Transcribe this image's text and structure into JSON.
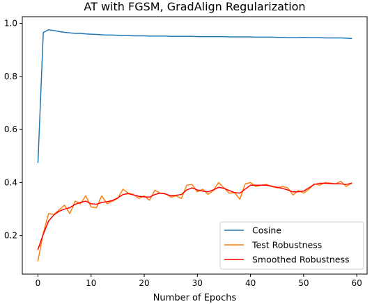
{
  "chart_data": {
    "type": "line",
    "title": "AT with FGSM, GradAlign Regularization",
    "xlabel": "Number of Epochs",
    "ylabel": "",
    "xlim": [
      -2.95,
      61.95
    ],
    "ylim": [
      0.055,
      1.025
    ],
    "xticks": [
      0,
      10,
      20,
      30,
      40,
      50,
      60
    ],
    "yticks": [
      0.2,
      0.4,
      0.6,
      0.8,
      1.0
    ],
    "ytick_labels": [
      "0.2",
      "0.4",
      "0.6",
      "0.8",
      "1.0"
    ],
    "grid": false,
    "legend_position": "lower-right",
    "x": [
      0,
      1,
      2,
      3,
      4,
      5,
      6,
      7,
      8,
      9,
      10,
      11,
      12,
      13,
      14,
      15,
      16,
      17,
      18,
      19,
      20,
      21,
      22,
      23,
      24,
      25,
      26,
      27,
      28,
      29,
      30,
      31,
      32,
      33,
      34,
      35,
      36,
      37,
      38,
      39,
      40,
      41,
      42,
      43,
      44,
      45,
      46,
      47,
      48,
      49,
      50,
      51,
      52,
      53,
      54,
      55,
      56,
      57,
      58,
      59
    ],
    "series": [
      {
        "name": "Cosine",
        "color": "#1f77b4",
        "values": [
          0.476,
          0.965,
          0.976,
          0.973,
          0.969,
          0.966,
          0.964,
          0.962,
          0.962,
          0.96,
          0.959,
          0.958,
          0.957,
          0.956,
          0.956,
          0.955,
          0.954,
          0.954,
          0.953,
          0.953,
          0.953,
          0.952,
          0.952,
          0.952,
          0.952,
          0.951,
          0.951,
          0.951,
          0.951,
          0.951,
          0.95,
          0.95,
          0.95,
          0.95,
          0.95,
          0.95,
          0.949,
          0.949,
          0.949,
          0.949,
          0.949,
          0.948,
          0.948,
          0.948,
          0.948,
          0.947,
          0.947,
          0.946,
          0.946,
          0.946,
          0.947,
          0.946,
          0.946,
          0.946,
          0.945,
          0.945,
          0.945,
          0.945,
          0.944,
          0.943
        ]
      },
      {
        "name": "Test Robustness",
        "color": "#ff7f0e",
        "values": [
          0.105,
          0.21,
          0.283,
          0.28,
          0.297,
          0.315,
          0.283,
          0.33,
          0.32,
          0.35,
          0.308,
          0.305,
          0.35,
          0.32,
          0.33,
          0.34,
          0.375,
          0.36,
          0.355,
          0.34,
          0.35,
          0.333,
          0.371,
          0.36,
          0.358,
          0.345,
          0.35,
          0.34,
          0.39,
          0.393,
          0.365,
          0.375,
          0.355,
          0.37,
          0.4,
          0.38,
          0.36,
          0.362,
          0.337,
          0.395,
          0.4,
          0.385,
          0.39,
          0.393,
          0.385,
          0.38,
          0.385,
          0.38,
          0.353,
          0.37,
          0.36,
          0.375,
          0.395,
          0.39,
          0.4,
          0.398,
          0.395,
          0.405,
          0.385,
          0.398
        ]
      },
      {
        "name": "Smoothed Robustness",
        "color": "#ff0000",
        "values": [
          0.148,
          0.205,
          0.255,
          0.278,
          0.292,
          0.3,
          0.305,
          0.318,
          0.325,
          0.33,
          0.32,
          0.318,
          0.325,
          0.328,
          0.332,
          0.342,
          0.355,
          0.358,
          0.353,
          0.348,
          0.346,
          0.345,
          0.355,
          0.36,
          0.357,
          0.35,
          0.352,
          0.355,
          0.372,
          0.38,
          0.372,
          0.368,
          0.365,
          0.372,
          0.382,
          0.378,
          0.37,
          0.362,
          0.36,
          0.375,
          0.39,
          0.39,
          0.39,
          0.39,
          0.386,
          0.382,
          0.378,
          0.372,
          0.365,
          0.365,
          0.368,
          0.38,
          0.393,
          0.397,
          0.397,
          0.396,
          0.395,
          0.395,
          0.393,
          0.397
        ]
      }
    ]
  }
}
